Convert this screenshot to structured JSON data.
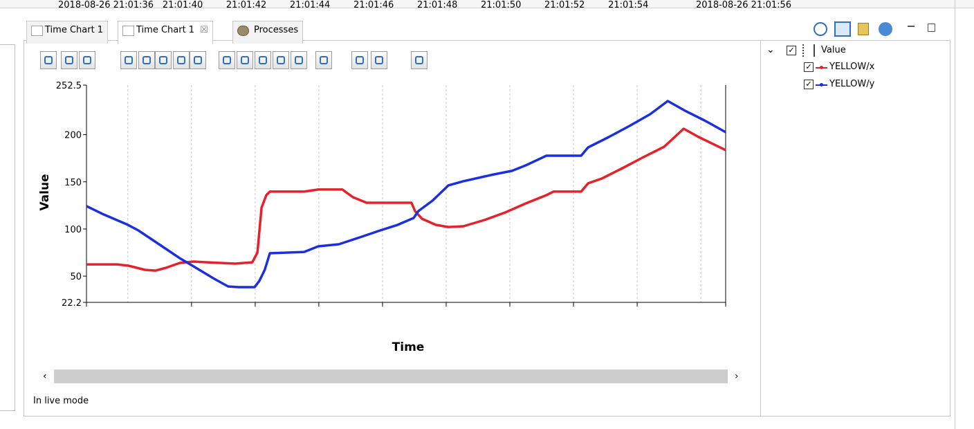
{
  "tabs": [
    "Time Chart 1",
    "Time Chart 1",
    "Processes"
  ],
  "tree": {
    "root": "Value"
  },
  "status": "In live mode",
  "chart_data": {
    "type": "line",
    "xlabel": "Time",
    "ylabel": "Value",
    "xlim": [
      36.7,
      56.78
    ],
    "ylim": [
      22.2,
      252.5
    ],
    "yticks": [
      22.2,
      50,
      100,
      150,
      200,
      252.5
    ],
    "xticks": [
      {
        "value": 36.7,
        "label": "2018-08-26 21:01:36"
      },
      {
        "value": 40,
        "label": "21:01:40"
      },
      {
        "value": 42,
        "label": "21:01:42"
      },
      {
        "value": 44,
        "label": "21:01:44"
      },
      {
        "value": 46,
        "label": "21:01:46"
      },
      {
        "value": 48,
        "label": "21:01:48"
      },
      {
        "value": 50,
        "label": "21:01:50"
      },
      {
        "value": 52,
        "label": "21:01:52"
      },
      {
        "value": 54,
        "label": "21:01:54"
      },
      {
        "value": 56.78,
        "label": "2018-08-26 21:01:56"
      }
    ],
    "xgrid": [
      38,
      40,
      42,
      44,
      46,
      48,
      50,
      52,
      54,
      56
    ],
    "series": [
      {
        "name": "YELLOW/x",
        "color": "#e8202a",
        "x": [
          36.7,
          37.67,
          38.02,
          38.54,
          38.87,
          39.2,
          39.63,
          40.07,
          40.5,
          41.37,
          41.91,
          42.07,
          42.2,
          42.35,
          42.46,
          43.54,
          43.98,
          44.74,
          45.07,
          45.5,
          46.15,
          46.91,
          47.02,
          47.24,
          47.67,
          48.07,
          48.54,
          49.2,
          49.85,
          50.5,
          51.15,
          51.37,
          52.24,
          52.46,
          52.89,
          53.54,
          54.2,
          54.85,
          55.46,
          55.93,
          56.78
        ],
        "values": [
          62.5,
          62.5,
          61.1,
          56.7,
          55.9,
          58.9,
          64,
          65.5,
          64.7,
          63.3,
          64.7,
          75,
          122.7,
          135.9,
          139.6,
          139.6,
          141.8,
          141.8,
          133.7,
          127.8,
          127.8,
          127.8,
          119,
          110.9,
          104.4,
          102.1,
          102.9,
          109.5,
          117.5,
          127.1,
          135.9,
          139.6,
          139.6,
          148.4,
          153.5,
          164.5,
          176.2,
          187.2,
          206.3,
          197.5,
          183.6
        ]
      },
      {
        "name": "YELLOW/y",
        "color": "#1a2fe0",
        "x": [
          36.7,
          37.24,
          38,
          38.33,
          38.98,
          39.63,
          40.07,
          40.72,
          41.15,
          41.48,
          41.98,
          42.13,
          42.3,
          42.46,
          43.54,
          43.98,
          44.63,
          45.28,
          45.93,
          46.48,
          46.98,
          47.13,
          47.57,
          48.07,
          48.54,
          49.41,
          50.07,
          50.5,
          51.15,
          52.24,
          52.46,
          53.11,
          53.76,
          54.41,
          54.96,
          55.5,
          56.15,
          56.78
        ],
        "values": [
          124.2,
          115.4,
          104.4,
          98.5,
          83.8,
          69.1,
          60.3,
          47.1,
          39.1,
          38.3,
          38.3,
          44.9,
          56.7,
          74.3,
          75.7,
          81.6,
          83.8,
          91.1,
          98.5,
          104.4,
          111.7,
          119,
          130,
          146.2,
          150.6,
          157.2,
          161.6,
          167.4,
          177.7,
          177.7,
          186.5,
          197.5,
          209.2,
          221.7,
          235.6,
          225.4,
          214.4,
          202.6
        ]
      }
    ]
  }
}
